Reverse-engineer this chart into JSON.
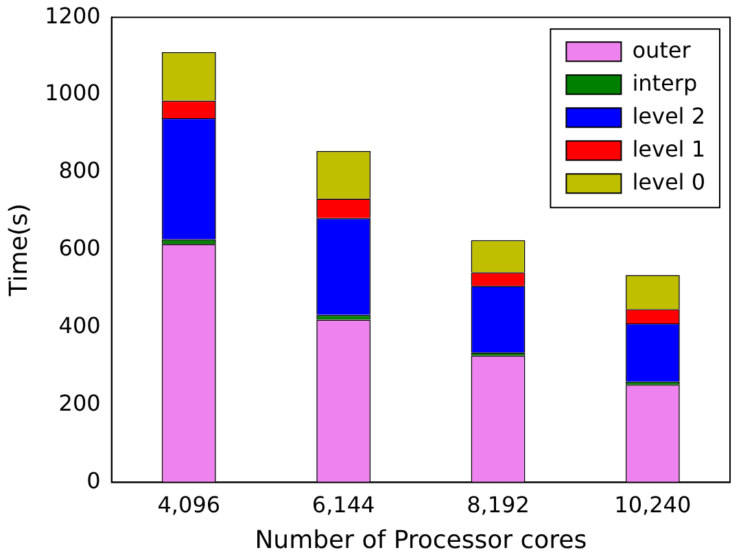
{
  "chart_data": {
    "type": "bar",
    "stacked": true,
    "xlabel": "Number of Processor cores",
    "ylabel": "Time(s)",
    "categories": [
      "4,096",
      "6,144",
      "8,192",
      "10,240"
    ],
    "series": [
      {
        "name": "outer",
        "color": "#ee82ee",
        "values": [
          615,
          420,
          327,
          252
        ]
      },
      {
        "name": "interp",
        "color": "#008000",
        "values": [
          12,
          12,
          8,
          8
        ]
      },
      {
        "name": "level 2",
        "color": "#0000ff",
        "values": [
          313,
          250,
          172,
          150
        ]
      },
      {
        "name": "level 1",
        "color": "#ff0000",
        "values": [
          45,
          50,
          35,
          37
        ]
      },
      {
        "name": "level 0",
        "color": "#bfbf00",
        "values": [
          125,
          123,
          83,
          88
        ]
      }
    ],
    "ylim": [
      0,
      1200
    ],
    "yticks": [
      0,
      200,
      400,
      600,
      800,
      1000,
      1200
    ],
    "grid": false,
    "legend": "top right"
  }
}
